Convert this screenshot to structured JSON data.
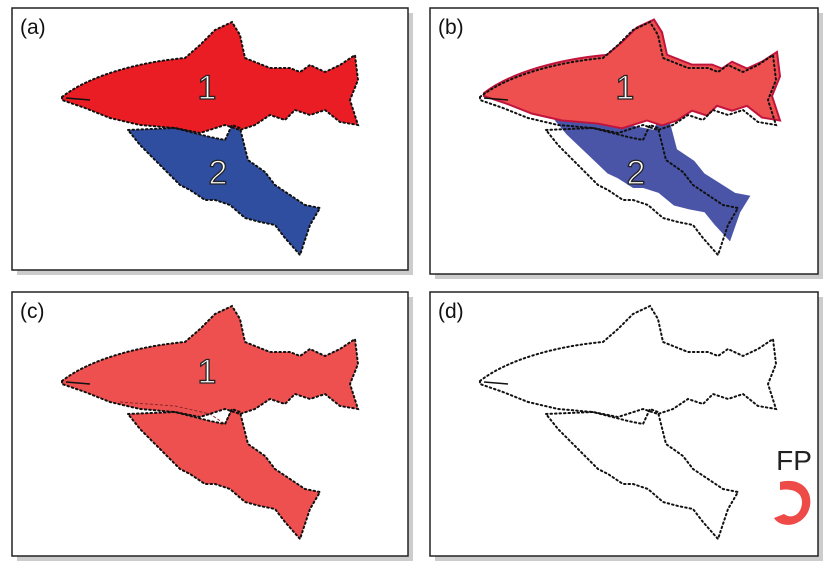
{
  "panels": [
    {
      "label": "(a)",
      "numbers": [
        "1",
        "2"
      ]
    },
    {
      "label": "(b)",
      "numbers": [
        "1",
        "2"
      ]
    },
    {
      "label": "(c)",
      "numbers": [
        "1"
      ]
    },
    {
      "label": "(d)",
      "numbers": []
    }
  ],
  "logo": {
    "text": "FP"
  }
}
